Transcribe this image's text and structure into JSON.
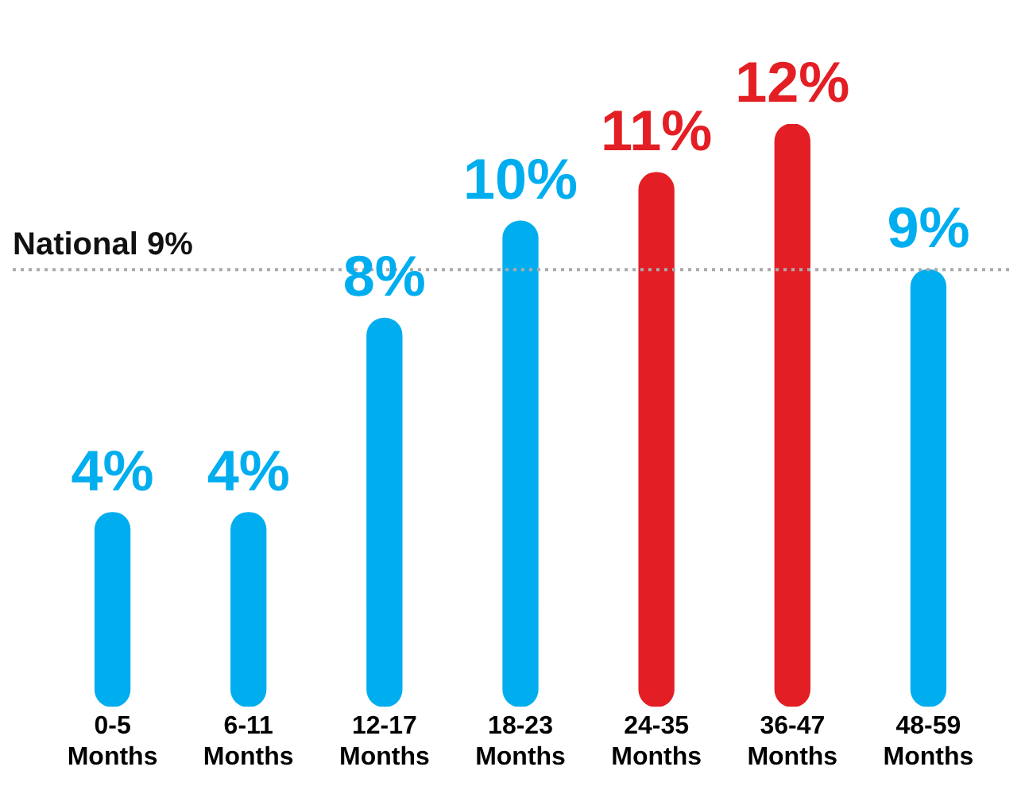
{
  "chart_data": {
    "type": "bar",
    "categories": [
      "0-5 Months",
      "6-11 Months",
      "12-17 Months",
      "18-23 Months",
      "24-35 Months",
      "36-47 Months",
      "48-59 Months"
    ],
    "values": [
      4,
      4,
      8,
      10,
      11,
      12,
      9
    ],
    "colors": [
      "#00aeef",
      "#00aeef",
      "#00aeef",
      "#00aeef",
      "#e31e24",
      "#e31e24",
      "#00aeef"
    ],
    "value_labels": [
      "4%",
      "4%",
      "8%",
      "10%",
      "11%",
      "12%",
      "9%"
    ],
    "ref_lines": [
      {
        "axis": "y",
        "value": 9,
        "label": "National 9%",
        "color": "#aaaaaa",
        "line_style": "dotted"
      }
    ],
    "grid": false,
    "legend": false
  }
}
